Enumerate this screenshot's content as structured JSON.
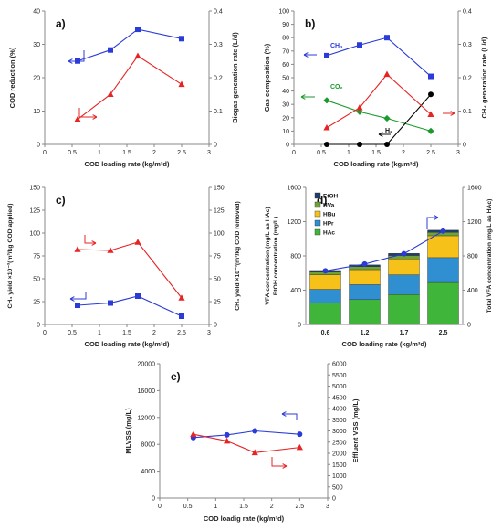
{
  "colors": {
    "blue": "#2b3bd8",
    "red": "#e62424",
    "green": "#1a9a2c",
    "black": "#000000",
    "hac": "#3fb63a",
    "hpr": "#2f8fd0",
    "hbu": "#f6c21a",
    "hva": "#70a336",
    "etoh": "#1f3f6b"
  },
  "chart_data": [
    {
      "panel_label": "a)",
      "type": "line",
      "xlabel": "COD loading rate (kg/m³d)",
      "ylabel": "COD reduction (%)",
      "y2label": "Biogas generation rate (L/d)",
      "xlim": [
        0,
        3
      ],
      "xticks": [
        "0",
        "0.5",
        "1",
        "1.5",
        "2",
        "2.5",
        "3"
      ],
      "ylim": [
        0,
        40
      ],
      "yticks": [
        "0",
        "10",
        "20",
        "30",
        "40"
      ],
      "y2lim": [
        0,
        0.4
      ],
      "y2ticks": [
        "0",
        "0.1",
        "0.2",
        "0.3",
        "0.4"
      ],
      "series": [
        {
          "axis": "left",
          "color": "blue",
          "marker": "square",
          "x": [
            0.6,
            1.2,
            1.7,
            2.5
          ],
          "y": [
            25,
            28.3,
            34.5,
            31.7
          ]
        },
        {
          "axis": "right",
          "color": "red",
          "marker": "triangle",
          "x": [
            0.6,
            1.2,
            1.7,
            2.5
          ],
          "y": [
            0.075,
            0.15,
            0.265,
            0.18
          ]
        }
      ]
    },
    {
      "panel_label": "b)",
      "type": "line",
      "xlabel": "COD loading rate (kg/m³d)",
      "ylabel": "Gas composition (%)",
      "y2label": "CH₄ generation rate (L/d)",
      "xlim": [
        0,
        3
      ],
      "xticks": [
        "0",
        "0.5",
        "1",
        "1.5",
        "2",
        "2.5",
        "3"
      ],
      "ylim": [
        0,
        100
      ],
      "yticks": [
        "0",
        "10",
        "20",
        "30",
        "40",
        "50",
        "60",
        "70",
        "80",
        "90",
        "100"
      ],
      "y2lim": [
        0,
        0.4
      ],
      "y2ticks": [
        "0",
        "0.1",
        "0.2",
        "0.3",
        "0.4"
      ],
      "annotations": [
        "CH₄",
        "CO₂",
        "H₂"
      ],
      "series": [
        {
          "axis": "left",
          "color": "blue",
          "marker": "square",
          "x": [
            0.6,
            1.2,
            1.7,
            2.5
          ],
          "y": [
            66.5,
            74.5,
            80,
            51
          ]
        },
        {
          "axis": "left",
          "color": "green",
          "marker": "diamond",
          "x": [
            0.6,
            1.2,
            1.7,
            2.5
          ],
          "y": [
            33,
            24.5,
            19.5,
            10
          ]
        },
        {
          "axis": "left",
          "color": "black",
          "marker": "circle",
          "x": [
            0.6,
            1.2,
            1.7,
            2.5
          ],
          "y": [
            0,
            0,
            0,
            37.5
          ]
        },
        {
          "axis": "right",
          "color": "red",
          "marker": "triangle",
          "x": [
            0.6,
            1.2,
            1.7,
            2.5
          ],
          "y": [
            0.05,
            0.11,
            0.21,
            0.09
          ]
        }
      ]
    },
    {
      "panel_label": "c)",
      "type": "line",
      "xlabel": "COD loading rate (kg/m³d)",
      "ylabel": "CH₄ yield ×10⁻³(m³/kg COD applied)",
      "y2label": "CH₄ yield ×10⁻³(m³/kg COD removed)",
      "xlim": [
        0,
        3
      ],
      "xticks": [
        "0",
        "0.5",
        "1",
        "1.5",
        "2",
        "2.5",
        "3"
      ],
      "ylim": [
        0,
        150
      ],
      "yticks": [
        "0",
        "25",
        "50",
        "75",
        "100",
        "125",
        "150"
      ],
      "y2lim": [
        0,
        150
      ],
      "y2ticks": [
        "0",
        "25",
        "50",
        "75",
        "100",
        "125",
        "150"
      ],
      "series": [
        {
          "axis": "left",
          "color": "blue",
          "marker": "square",
          "x": [
            0.6,
            1.2,
            1.7,
            2.5
          ],
          "y": [
            21,
            23.5,
            31,
            9
          ]
        },
        {
          "axis": "right",
          "color": "red",
          "marker": "triangle",
          "x": [
            0.6,
            1.2,
            1.7,
            2.5
          ],
          "y": [
            82,
            81,
            90,
            29
          ]
        }
      ]
    },
    {
      "panel_label": "d)",
      "type": "bar",
      "stacked": true,
      "xlabel": "COD loading rate (kg/m³d)",
      "ylabel": "VFA concentration (mg/L as HAc)",
      "ylabel2": "EtOH concentration (mg/L)",
      "y2label": "Total VFA concentration  (mg/L as HAc)",
      "categories": [
        "0.6",
        "1.2",
        "1.7",
        "2.5"
      ],
      "ylim": [
        0,
        1600
      ],
      "yticks": [
        "0",
        "400",
        "800",
        "1200",
        "1600"
      ],
      "y2lim": [
        0,
        1600
      ],
      "y2ticks": [
        "0",
        "400",
        "800",
        "1200",
        "1600"
      ],
      "legend": [
        "EtOH",
        "HVa",
        "HBu",
        "HPr",
        "HAc"
      ],
      "series": [
        {
          "name": "HAc",
          "color": "hac",
          "values": [
            250,
            290,
            350,
            490
          ]
        },
        {
          "name": "HPr",
          "color": "hpr",
          "values": [
            160,
            175,
            230,
            290
          ]
        },
        {
          "name": "HBu",
          "color": "hbu",
          "values": [
            170,
            175,
            185,
            255
          ]
        },
        {
          "name": "HVa",
          "color": "hva",
          "values": [
            30,
            35,
            40,
            40
          ]
        },
        {
          "name": "EtOH",
          "color": "etoh",
          "values": [
            20,
            20,
            25,
            25
          ]
        }
      ],
      "total_line": {
        "axis": "right",
        "color": "blue",
        "marker": "circle",
        "values": [
          625,
          705,
          825,
          1090
        ]
      }
    },
    {
      "panel_label": "e)",
      "type": "line",
      "xlabel": "COD loadig rate (kg/m³d)",
      "ylabel": "MLVSS (mg/L)",
      "y2label": "Effluent VSS (mg/L)",
      "xlim": [
        0,
        3
      ],
      "xticks": [
        "0",
        "0.5",
        "1",
        "1.5",
        "2",
        "2.5",
        "3"
      ],
      "ylim": [
        0,
        20000
      ],
      "yticks": [
        "0",
        "4000",
        "8000",
        "12000",
        "16000",
        "20000"
      ],
      "y2lim": [
        0,
        6000
      ],
      "y2ticks": [
        "0",
        "500",
        "1000",
        "1500",
        "2000",
        "2500",
        "3000",
        "3500",
        "4000",
        "4500",
        "5000",
        "5500",
        "6000"
      ],
      "series": [
        {
          "axis": "left",
          "color": "blue",
          "marker": "circle",
          "x": [
            0.6,
            1.2,
            1.7,
            2.5
          ],
          "y": [
            9000,
            9400,
            10000,
            9500
          ]
        },
        {
          "axis": "right",
          "color": "red",
          "marker": "triangle",
          "x": [
            0.6,
            1.2,
            1.7,
            2.5
          ],
          "y": [
            2850,
            2550,
            2030,
            2260
          ]
        }
      ]
    }
  ]
}
